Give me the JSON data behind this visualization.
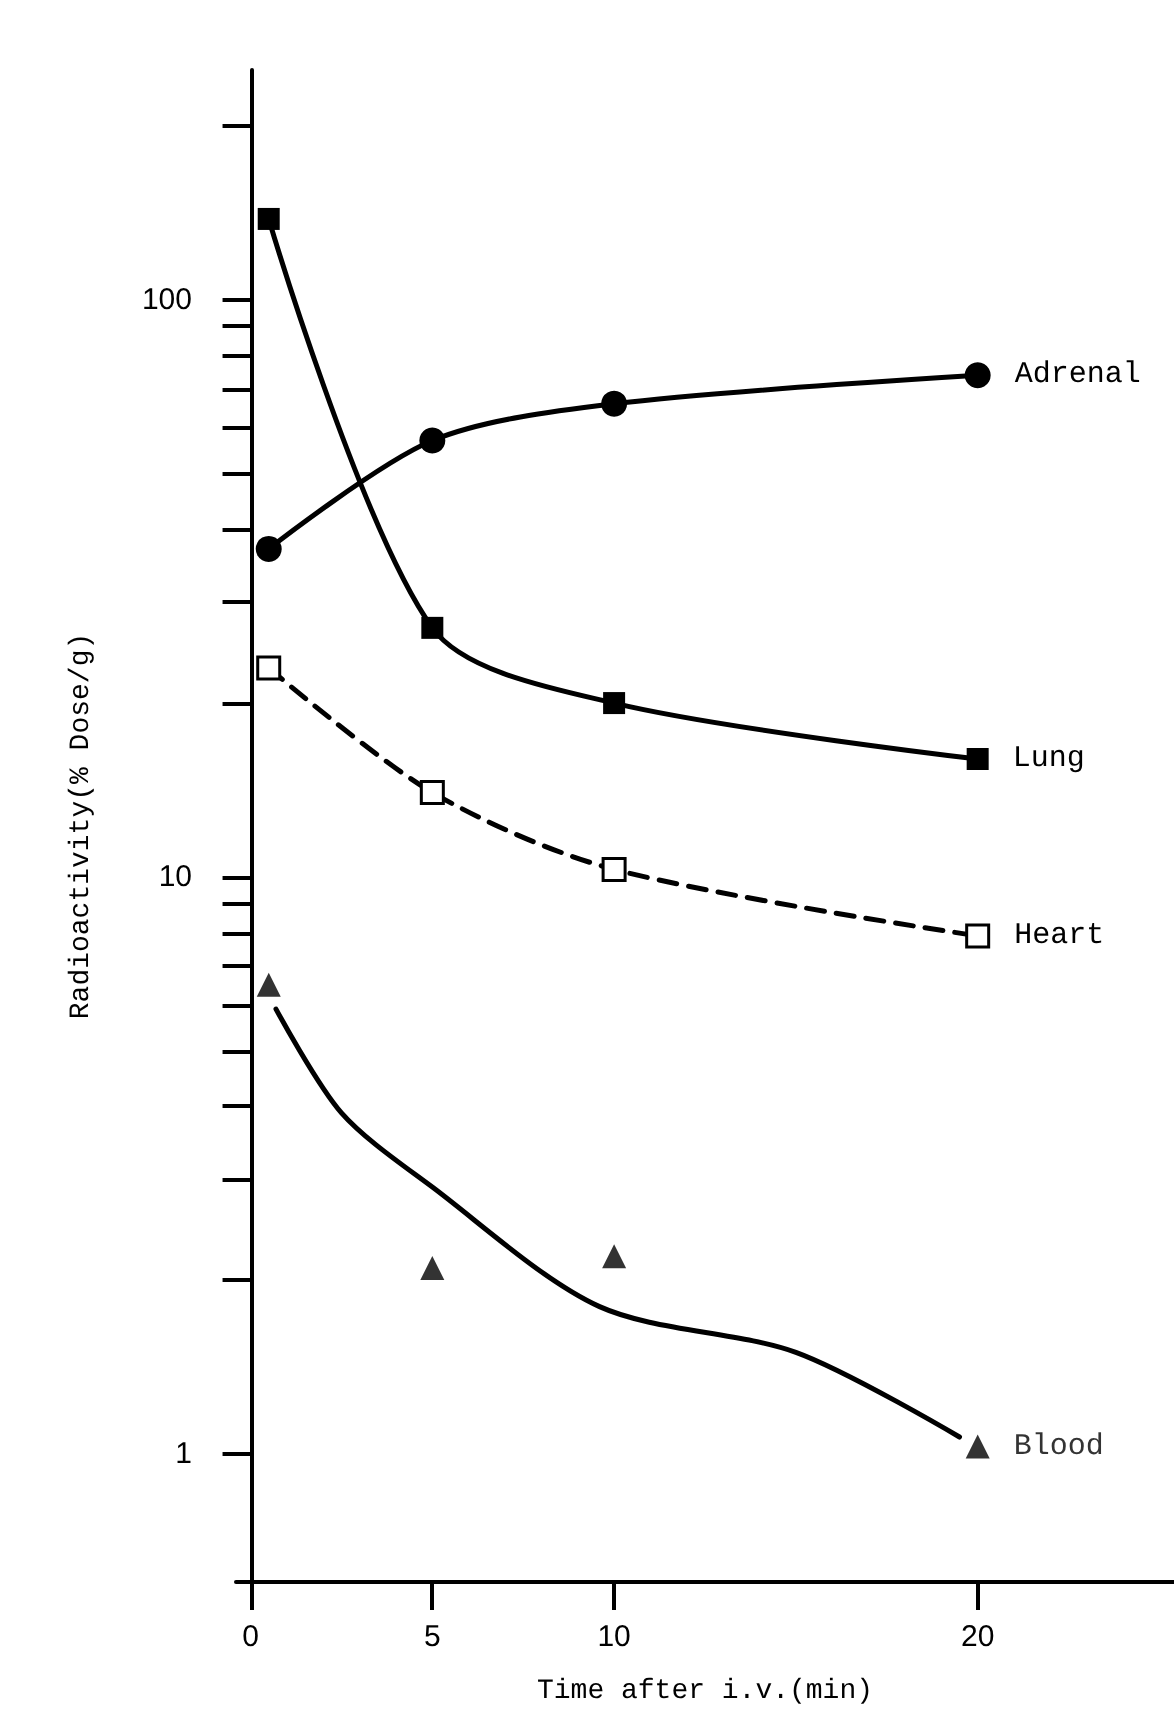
{
  "chart_data": {
    "type": "line",
    "xlabel": "Time after i.v.(min)",
    "ylabel": "Radioactivity(% Dose/g)",
    "log": "y",
    "xlim": [
      -0.4,
      25.4
    ],
    "xticks": [
      0,
      5,
      10,
      20
    ],
    "ylim": [
      0.6,
      250
    ],
    "yticks": [
      1,
      {
        "value": 2,
        "label": null
      },
      {
        "value": 3,
        "label": null
      },
      {
        "value": 4,
        "label": null
      },
      {
        "value": 5,
        "label": null
      },
      {
        "value": 6,
        "label": null
      },
      {
        "value": 7,
        "label": null
      },
      {
        "value": 8,
        "label": null
      },
      {
        "value": 9,
        "label": null
      },
      10,
      {
        "value": 20,
        "label": null
      },
      {
        "value": 30,
        "label": null
      },
      {
        "value": 40,
        "label": null
      },
      {
        "value": 50,
        "label": null
      },
      {
        "value": 60,
        "label": null
      },
      {
        "value": 70,
        "label": null
      },
      {
        "value": 80,
        "label": null
      },
      {
        "value": 90,
        "label": null
      },
      100,
      {
        "value": 200,
        "label": null
      }
    ],
    "grid": false,
    "legend": false,
    "series": [
      {
        "name": "Adrenal",
        "color": "#000000",
        "marker": "circle",
        "line_style": "solid",
        "x": [
          0.5,
          5,
          10,
          20
        ],
        "values": [
          37,
          57,
          66,
          74
        ]
      },
      {
        "name": "Lung",
        "color": "#000000",
        "marker": "square",
        "line_style": "solid",
        "x": [
          0.5,
          5,
          10,
          20
        ],
        "values": [
          138,
          27,
          20,
          16
        ]
      },
      {
        "name": "Heart",
        "color": "#000000",
        "colors": [
          "#ffffff",
          "#ffffff",
          "#ffffff",
          "#ffffff"
        ],
        "marker": "square",
        "line_style": "dashed",
        "x": [
          0.5,
          5,
          10,
          20
        ],
        "values": [
          23,
          14,
          10.3,
          7.9
        ]
      },
      {
        "name": "Blood",
        "type": "scatter",
        "color": "#000000",
        "marker": "triangle",
        "x": [
          0.5,
          5,
          10,
          20
        ],
        "values": [
          6.5,
          2.1,
          2.2,
          1.03
        ]
      },
      {
        "color": "#000000",
        "marker": "none",
        "line_style": "solid",
        "x": [
          0.7,
          2.5,
          5,
          9.6,
          15,
          19.5
        ],
        "values": [
          5.9,
          3.9,
          2.9,
          1.8,
          1.5,
          1.07
        ]
      }
    ]
  }
}
